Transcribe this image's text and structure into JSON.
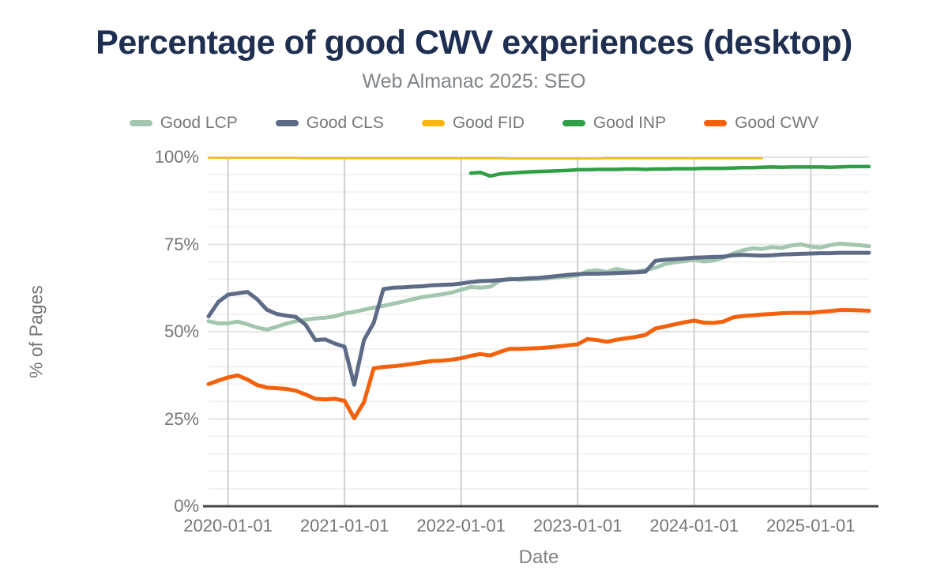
{
  "header": {
    "title": "Percentage of good CWV experiences (desktop)",
    "subtitle": "Web Almanac 2025: SEO"
  },
  "axes": {
    "y_title": "% of Pages",
    "x_title": "Date",
    "y_ticks": [
      "100%",
      "75%",
      "50%",
      "25%",
      "0%"
    ],
    "y_tick_values": [
      100,
      75,
      50,
      25,
      0
    ],
    "x_ticks": [
      "2020-01-01",
      "2021-01-01",
      "2022-01-01",
      "2023-01-01",
      "2024-01-01",
      "2025-01-01"
    ]
  },
  "chart_data": {
    "type": "line",
    "title": "Percentage of good CWV experiences (desktop)",
    "subtitle": "Web Almanac 2025: SEO",
    "xlabel": "Date",
    "ylabel": "% of Pages",
    "ylim": [
      0,
      100
    ],
    "grid": "horizontal minor every 5%, major every 25%; vertical gridlines at each year",
    "legend_position": "top",
    "x_range": [
      "2019-11",
      "2025-07"
    ],
    "x_monthly": [
      "2019-11",
      "2019-12",
      "2020-01",
      "2020-02",
      "2020-03",
      "2020-04",
      "2020-05",
      "2020-06",
      "2020-07",
      "2020-08",
      "2020-09",
      "2020-10",
      "2020-11",
      "2020-12",
      "2021-01",
      "2021-02",
      "2021-03",
      "2021-04",
      "2021-05",
      "2021-06",
      "2021-07",
      "2021-08",
      "2021-09",
      "2021-10",
      "2021-11",
      "2021-12",
      "2022-01",
      "2022-02",
      "2022-03",
      "2022-04",
      "2022-05",
      "2022-06",
      "2022-07",
      "2022-08",
      "2022-09",
      "2022-10",
      "2022-11",
      "2022-12",
      "2023-01",
      "2023-02",
      "2023-03",
      "2023-04",
      "2023-05",
      "2023-06",
      "2023-07",
      "2023-08",
      "2023-09",
      "2023-10",
      "2023-11",
      "2023-12",
      "2024-01",
      "2024-02",
      "2024-03",
      "2024-04",
      "2024-05",
      "2024-06",
      "2024-07",
      "2024-08",
      "2024-09",
      "2024-10",
      "2024-11",
      "2024-12",
      "2025-01",
      "2025-02",
      "2025-03",
      "2025-04",
      "2025-05",
      "2025-06",
      "2025-07"
    ],
    "series": [
      {
        "name": "Good LCP",
        "color": "#a3c7ae",
        "values": [
          53.0,
          52.4,
          52.4,
          52.9,
          52.1,
          51.2,
          50.6,
          51.4,
          52.3,
          53.0,
          53.4,
          53.8,
          54.0,
          54.4,
          55.2,
          55.7,
          56.3,
          56.9,
          57.4,
          58.0,
          58.6,
          59.3,
          59.9,
          60.3,
          60.7,
          61.2,
          62.0,
          62.8,
          62.6,
          62.9,
          64.6,
          65.2,
          64.9,
          65.0,
          65.1,
          65.3,
          65.6,
          65.8,
          66.1,
          67.3,
          67.6,
          67.1,
          68.0,
          67.4,
          67.2,
          67.7,
          68.3,
          69.4,
          69.9,
          70.2,
          70.6,
          70.1,
          70.4,
          71.2,
          72.4,
          73.3,
          73.9,
          73.7,
          74.2,
          74.0,
          74.7,
          75.0,
          74.4,
          74.1,
          74.8,
          75.2,
          75.0,
          74.8,
          74.5
        ]
      },
      {
        "name": "Good CLS",
        "color": "#5d6b87",
        "values": [
          54.4,
          58.5,
          60.6,
          61.0,
          61.4,
          59.3,
          56.3,
          55.1,
          54.6,
          54.2,
          52.0,
          47.6,
          47.8,
          46.6,
          45.7,
          34.8,
          47.6,
          52.5,
          62.2,
          62.6,
          62.7,
          62.9,
          63.0,
          63.3,
          63.4,
          63.5,
          63.8,
          64.2,
          64.5,
          64.6,
          64.8,
          65.0,
          65.1,
          65.3,
          65.4,
          65.7,
          66.0,
          66.3,
          66.5,
          66.6,
          66.6,
          66.7,
          66.8,
          66.9,
          67.0,
          67.2,
          70.3,
          70.6,
          70.8,
          71.0,
          71.2,
          71.3,
          71.4,
          71.5,
          71.9,
          72.0,
          71.9,
          71.8,
          71.9,
          72.1,
          72.2,
          72.3,
          72.4,
          72.5,
          72.5,
          72.6,
          72.6,
          72.6,
          72.6
        ]
      },
      {
        "name": "Good FID",
        "color": "#fbb612",
        "values": [
          99.8,
          99.8,
          99.8,
          99.8,
          99.8,
          99.8,
          99.8,
          99.8,
          99.8,
          99.8,
          99.7,
          99.7,
          99.7,
          99.7,
          99.7,
          99.7,
          99.7,
          99.7,
          99.7,
          99.7,
          99.7,
          99.7,
          99.7,
          99.7,
          99.7,
          99.7,
          99.7,
          99.7,
          99.7,
          99.7,
          99.7,
          99.6,
          99.6,
          99.6,
          99.6,
          99.6,
          99.6,
          99.6,
          99.6,
          99.6,
          99.6,
          99.7,
          99.7,
          99.7,
          99.7,
          99.7,
          99.7,
          99.7,
          99.7,
          99.7,
          99.7,
          99.7,
          99.7,
          99.7,
          99.7,
          99.7,
          99.7,
          99.7,
          null,
          null,
          null,
          null,
          null,
          null,
          null,
          null,
          null,
          null,
          null
        ]
      },
      {
        "name": "Good INP",
        "color": "#2f9e44",
        "values": [
          null,
          null,
          null,
          null,
          null,
          null,
          null,
          null,
          null,
          null,
          null,
          null,
          null,
          null,
          null,
          null,
          null,
          null,
          null,
          null,
          null,
          null,
          null,
          null,
          null,
          null,
          null,
          95.4,
          95.6,
          94.6,
          95.2,
          95.4,
          95.6,
          95.8,
          95.9,
          96.0,
          96.1,
          96.2,
          96.4,
          96.4,
          96.5,
          96.5,
          96.5,
          96.6,
          96.6,
          96.5,
          96.6,
          96.6,
          96.7,
          96.7,
          96.7,
          96.8,
          96.8,
          96.8,
          96.9,
          97.0,
          97.0,
          97.1,
          97.2,
          97.1,
          97.2,
          97.2,
          97.2,
          97.2,
          97.1,
          97.2,
          97.3,
          97.3,
          97.3
        ]
      },
      {
        "name": "Good CWV",
        "color": "#f4610c",
        "values": [
          35.0,
          36.0,
          36.9,
          37.5,
          36.3,
          34.7,
          34.0,
          33.8,
          33.6,
          33.1,
          32.0,
          30.8,
          30.6,
          30.8,
          30.2,
          25.2,
          29.8,
          39.5,
          39.9,
          40.1,
          40.4,
          40.8,
          41.2,
          41.6,
          41.7,
          42.0,
          42.4,
          43.1,
          43.6,
          43.2,
          44.2,
          45.1,
          45.1,
          45.2,
          45.3,
          45.5,
          45.8,
          46.1,
          46.4,
          47.9,
          47.6,
          47.1,
          47.7,
          48.1,
          48.5,
          49.1,
          50.9,
          51.5,
          52.1,
          52.7,
          53.2,
          52.6,
          52.5,
          52.9,
          54.1,
          54.5,
          54.7,
          54.9,
          55.1,
          55.3,
          55.4,
          55.4,
          55.4,
          55.7,
          55.9,
          56.2,
          56.2,
          56.1,
          56.0
        ]
      }
    ]
  }
}
